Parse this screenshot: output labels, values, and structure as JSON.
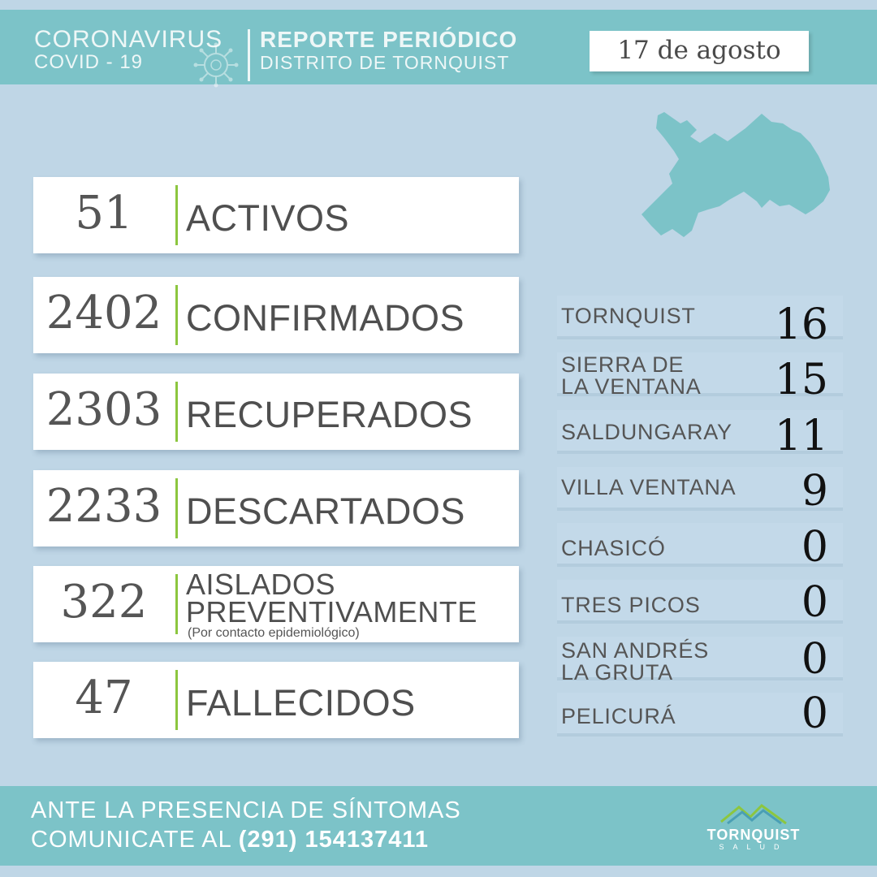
{
  "header": {
    "title": "CORONAVIRUS",
    "subtitle": "COVID - 19",
    "report_title": "REPORTE PERIÓDICO",
    "report_subtitle": "DISTRITO DE TORNQUIST",
    "date": "17 de agosto"
  },
  "stats": [
    {
      "value": "51",
      "label": "ACTIVOS"
    },
    {
      "value": "2402",
      "label": "CONFIRMADOS"
    },
    {
      "value": "2303",
      "label": "RECUPERADOS"
    },
    {
      "value": "2233",
      "label": "DESCARTADOS"
    },
    {
      "value": "322",
      "label_line1": "AISLADOS",
      "label_line2": "PREVENTIVAMENTE",
      "note": "(Por contacto epidemiológico)"
    },
    {
      "value": "47",
      "label": "FALLECIDOS"
    }
  ],
  "localities": [
    {
      "name": "TORNQUIST",
      "value": "16"
    },
    {
      "name_line1": "SIERRA DE",
      "name_line2": "LA VENTANA",
      "value": "15"
    },
    {
      "name": "SALDUNGARAY",
      "value": "11"
    },
    {
      "name": "VILLA VENTANA",
      "value": "9"
    },
    {
      "name": "CHASICÓ",
      "value": "0"
    },
    {
      "name": "TRES PICOS",
      "value": "0"
    },
    {
      "name_line1": "SAN ANDRÉS",
      "name_line2": "LA GRUTA",
      "value": "0"
    },
    {
      "name": "PELICURÁ",
      "value": "0"
    }
  ],
  "footer": {
    "line1": "ANTE LA PRESENCIA DE SÍNTOMAS",
    "line2": "COMUNICATE AL ",
    "phone": "(291) 154137411"
  },
  "logo": {
    "name": "TORNQUIST",
    "sub": "SALUD"
  },
  "colors": {
    "background": "#bfd6e6",
    "teal": "#7cc3c8",
    "accent_green": "#8cc63f"
  },
  "icons": [
    "virus-icon",
    "district-map",
    "mountains-icon"
  ]
}
